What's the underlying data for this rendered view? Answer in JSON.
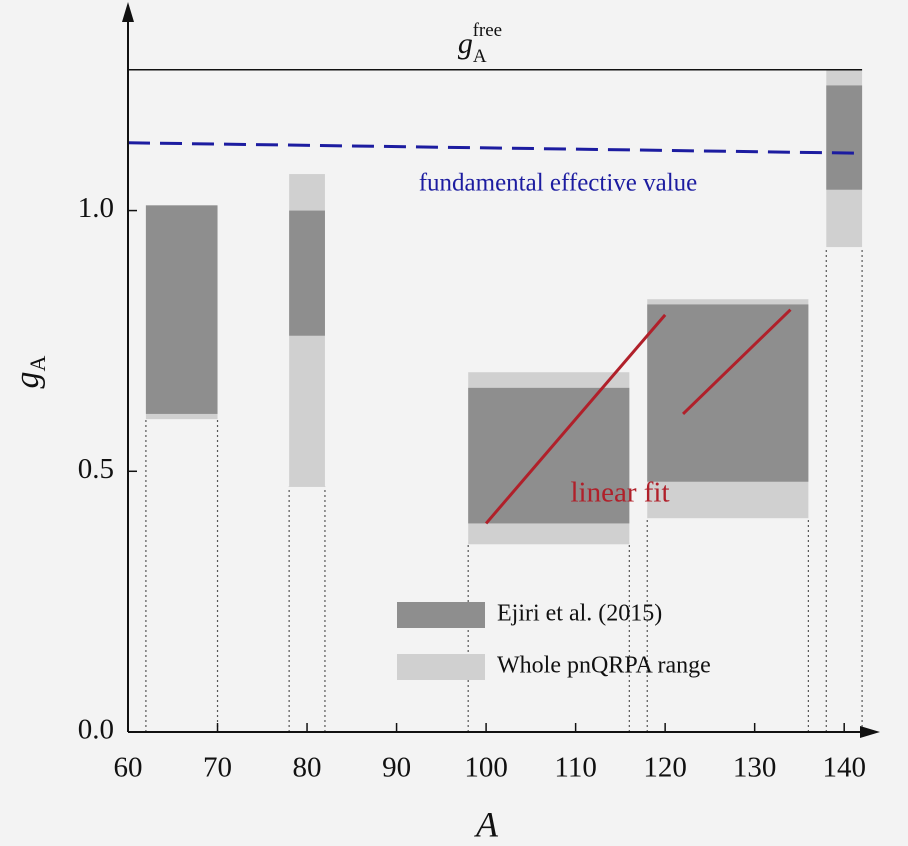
{
  "chart_data": {
    "type": "range",
    "xlabel": "A",
    "ylabel": {
      "symbol": "g",
      "sub": "A"
    },
    "xlim": [
      60,
      144
    ],
    "ylim": [
      0,
      1.4
    ],
    "xticks": [
      60,
      70,
      80,
      90,
      100,
      110,
      120,
      130,
      140
    ],
    "yticks": [
      {
        "value": 0,
        "label": "0.0"
      },
      {
        "value": 0.5,
        "label": "0.5"
      },
      {
        "value": 1,
        "label": "1.0"
      }
    ],
    "x_intervals": [
      [
        62,
        70
      ],
      [
        78,
        82
      ],
      [
        98,
        116
      ],
      [
        118,
        136
      ],
      [
        138,
        142
      ]
    ],
    "series": [
      {
        "name": "Whole pnQRPA range",
        "color": "#d0d0d0",
        "low": [
          0.6,
          0.47,
          0.36,
          0.41,
          0.93
        ],
        "high": [
          1.01,
          1.07,
          0.69,
          0.83,
          1.27
        ]
      },
      {
        "name": "Ejiri et al. (2015)",
        "color": "#8e8e8e",
        "low": [
          0.61,
          0.76,
          0.4,
          0.48,
          1.04
        ],
        "high": [
          1.01,
          1.0,
          0.66,
          0.82,
          1.24
        ]
      }
    ],
    "reference": {
      "value": 1.27,
      "label": {
        "symbol": "g",
        "sub": "A",
        "sup": "free"
      }
    },
    "effective_line": {
      "x": [
        60,
        142
      ],
      "y": [
        1.13,
        1.11
      ],
      "color": "#1c1ca0",
      "label": "fundamental effective value"
    },
    "fits": {
      "color": "#b0202a",
      "label": "linear fit",
      "lines": [
        {
          "x": [
            100,
            120
          ],
          "y": [
            0.4,
            0.8
          ]
        },
        {
          "x": [
            122,
            134
          ],
          "y": [
            0.61,
            0.81
          ]
        }
      ]
    }
  }
}
